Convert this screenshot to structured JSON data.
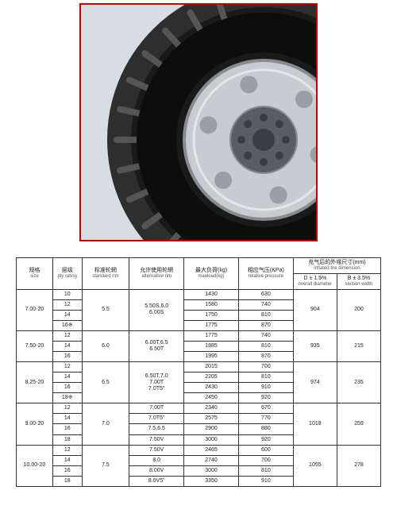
{
  "image": {
    "border_color": "#d00000",
    "bg_color": "#d8dde3",
    "tire_outer_color": "#1a1a1a",
    "tire_tread_color": "#2e2e2e",
    "rim_color": "#c8ccd0",
    "rim_dark": "#888c90",
    "hub_color": "#5a5e62",
    "bolt_color": "#3a3e42"
  },
  "table": {
    "headers": {
      "size": {
        "cn": "规格",
        "en": "size"
      },
      "ply": {
        "cn": "层级",
        "en": "ply rating"
      },
      "std_rim": {
        "cn": "标准轮辋",
        "en": "standard rim"
      },
      "alt_rim": {
        "cn": "允许使用轮辋",
        "en": "alternative rim"
      },
      "maxload": {
        "cn": "最大负荷(kg)",
        "en": "maxload(kg)"
      },
      "pressure": {
        "cn": "相应气压(KPa)",
        "en": "relative pressure"
      },
      "inflated_group": {
        "cn": "充气后的外缘尺寸(mm)",
        "en": "inflated tire dimension"
      },
      "dia": {
        "cn": "D ± 1.5%",
        "en": "overall diameter"
      },
      "width": {
        "cn": "B ± 3.5%",
        "en": "section width"
      }
    },
    "groups": [
      {
        "size": "7.00-20",
        "std_rim": "5.5",
        "alt_rim": "5.50S,6.0\n6.00S",
        "dia": "904",
        "width": "200",
        "rows": [
          {
            "ply": "10",
            "maxload": "1430",
            "pressure": "630"
          },
          {
            "ply": "12",
            "maxload": "1580",
            "pressure": "740"
          },
          {
            "ply": "14",
            "maxload": "1750",
            "pressure": "810"
          },
          {
            "ply": "16※",
            "maxload": "1775",
            "pressure": "870"
          }
        ]
      },
      {
        "size": "7.50-20",
        "std_rim": "6.0",
        "alt_rim": "6.00T,6.5\n6.50T",
        "dia": "935",
        "width": "215",
        "rows": [
          {
            "ply": "12",
            "maxload": "1775",
            "pressure": "740"
          },
          {
            "ply": "14",
            "maxload": "1885",
            "pressure": "810"
          },
          {
            "ply": "16",
            "maxload": "1995",
            "pressure": "870"
          }
        ]
      },
      {
        "size": "8.25-20",
        "std_rim": "6.5",
        "alt_rim": "6.50T,7.0\n7.00T\n7.0T5\"",
        "dia": "974",
        "width": "235",
        "rows": [
          {
            "ply": "12",
            "maxload": "2015",
            "pressure": "700"
          },
          {
            "ply": "14",
            "maxload": "2205",
            "pressure": "810"
          },
          {
            "ply": "16",
            "maxload": "2430",
            "pressure": "910"
          },
          {
            "ply": "18※",
            "maxload": "2450",
            "pressure": "920"
          }
        ]
      },
      {
        "size": "9.00-20",
        "std_rim": "7.0",
        "alt_rim": "7.00T\n7.0T5\"\n7.5,6.5\n7.50V",
        "dia": "1018",
        "width": "259",
        "rows": [
          {
            "ply": "12",
            "maxload": "2340",
            "pressure": "670"
          },
          {
            "ply": "14",
            "maxload": "2575",
            "pressure": "770"
          },
          {
            "ply": "16",
            "maxload": "2900",
            "pressure": "880"
          },
          {
            "ply": "18",
            "maxload": "3000",
            "pressure": "920"
          }
        ]
      },
      {
        "size": "10.00-20",
        "std_rim": "7.5",
        "alt_rim": "7.50V\n8.0\n8.00V\n8.0V5\"",
        "dia": "1055",
        "width": "278",
        "rows": [
          {
            "ply": "12",
            "maxload": "2465",
            "pressure": "600"
          },
          {
            "ply": "14",
            "maxload": "2740",
            "pressure": "700"
          },
          {
            "ply": "16",
            "maxload": "3000",
            "pressure": "810"
          },
          {
            "ply": "18",
            "maxload": "3350",
            "pressure": "910"
          }
        ]
      }
    ]
  }
}
